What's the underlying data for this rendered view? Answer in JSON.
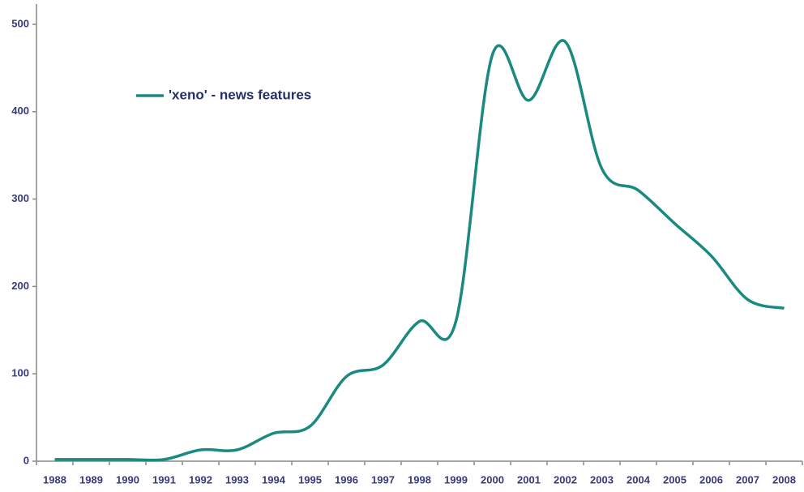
{
  "chart_data": {
    "type": "line",
    "categories": [
      "1988",
      "1989",
      "1990",
      "1991",
      "1992",
      "1993",
      "1994",
      "1995",
      "1996",
      "1997",
      "1998",
      "1999",
      "2000",
      "2001",
      "2002",
      "2003",
      "2004",
      "2005",
      "2006",
      "2007",
      "2008"
    ],
    "series": [
      {
        "name": "'xeno' - news features",
        "color": "#1a8a80",
        "values": [
          2,
          2,
          2,
          2,
          13,
          13,
          32,
          40,
          97,
          110,
          160,
          160,
          465,
          413,
          480,
          335,
          310,
          272,
          235,
          185,
          175
        ]
      }
    ],
    "ylim": [
      0,
      500
    ],
    "yticks": [
      0,
      100,
      200,
      300,
      400,
      500
    ],
    "smooth": true,
    "legend": "top-left"
  }
}
